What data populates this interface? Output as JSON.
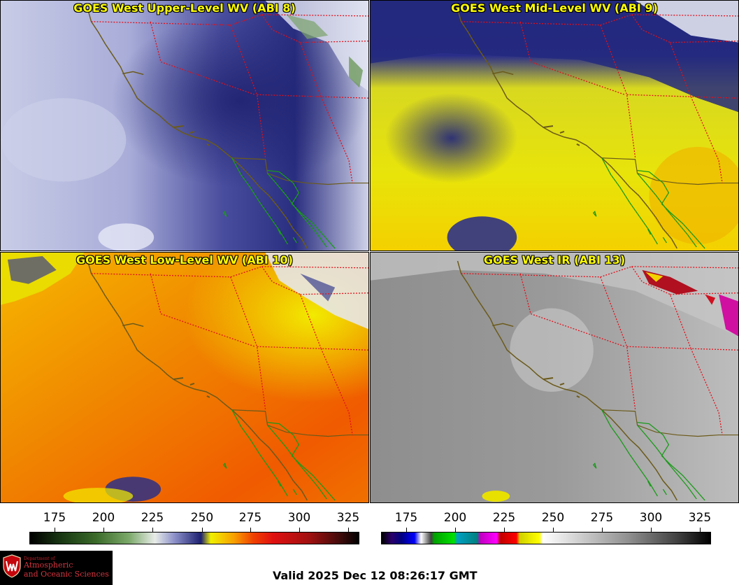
{
  "panels": [
    {
      "title": "GOES West Upper-Level WV (ABI 8)"
    },
    {
      "title": "GOES West Mid-Level WV (ABI 9)"
    },
    {
      "title": "GOES West Low-Level WV (ABI 10)"
    },
    {
      "title": "GOES West IR (ABI 13)"
    }
  ],
  "colorbars": {
    "wv": {
      "ticks": [
        "175",
        "200",
        "225",
        "250",
        "275",
        "300",
        "325"
      ]
    },
    "ir": {
      "ticks": [
        "175",
        "200",
        "225",
        "250",
        "275",
        "300",
        "325"
      ]
    }
  },
  "logo": {
    "line1": "Department of",
    "line2": "Atmospheric",
    "line3": "and Oceanic Sciences"
  },
  "valid_time": "Valid 2025 Dec 12 08:26:17 GMT"
}
